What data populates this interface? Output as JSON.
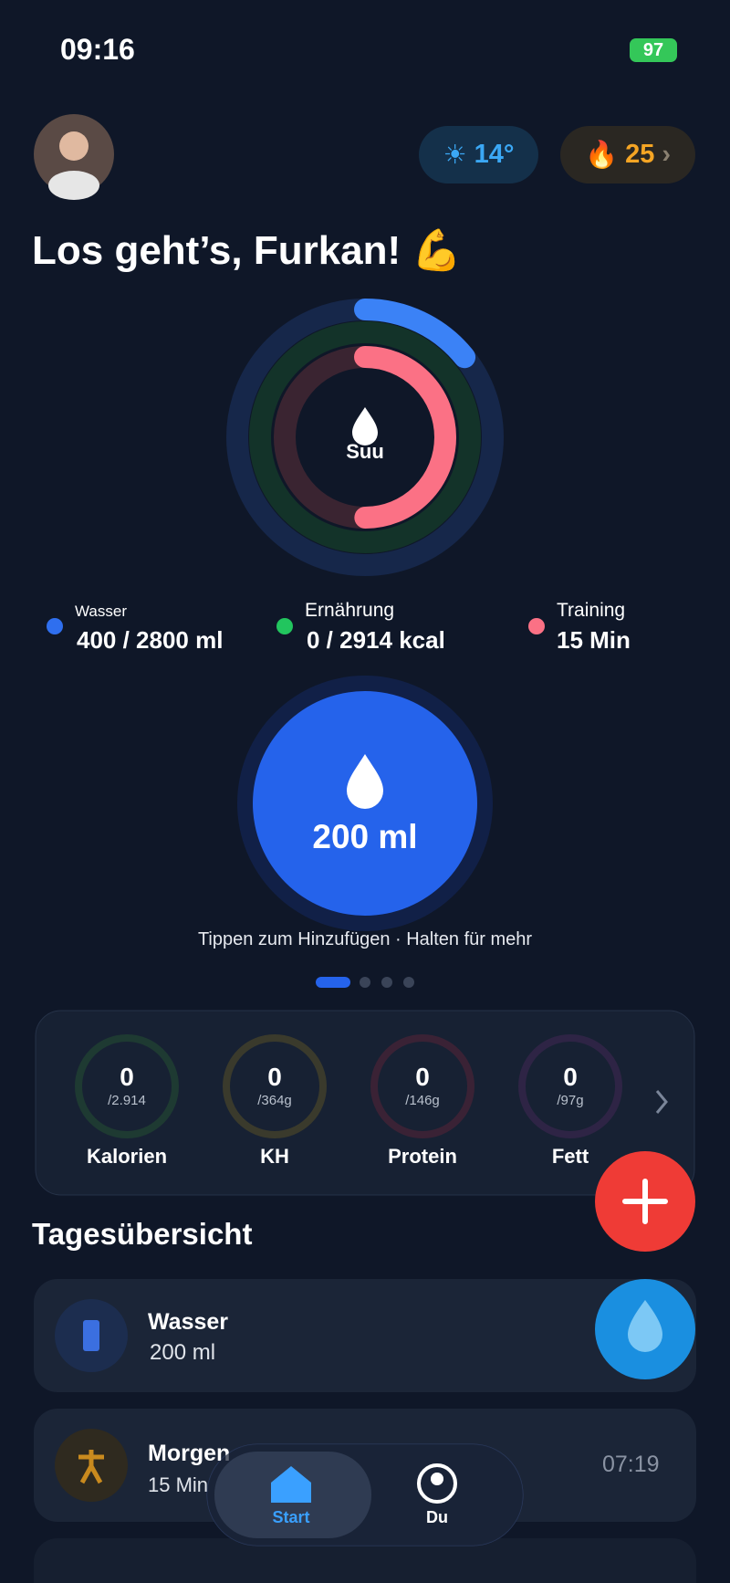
{
  "status_bar": {
    "time": "09:16",
    "battery": "97"
  },
  "header": {
    "weather": "14°",
    "streak": "25"
  },
  "greeting": "Los geht’s, Furkan! 💪",
  "rings": {
    "center_label": "Suu"
  },
  "legend": [
    {
      "label": "Wasser",
      "value": "400 / 2800 ml"
    },
    {
      "label": "Ernährung",
      "value": "0 / 2914 kcal"
    },
    {
      "label": "Training",
      "value": "15 Min"
    }
  ],
  "water_button": {
    "amount": "200 ml"
  },
  "hint": "Tippen zum Hinzufügen · Halten für mehr",
  "macros": [
    {
      "value": "0",
      "goal": "/2.914",
      "label": "Kalorien"
    },
    {
      "value": "0",
      "goal": "/364g",
      "label": "KH"
    },
    {
      "value": "0",
      "goal": "/146g",
      "label": "Protein"
    },
    {
      "value": "0",
      "goal": "/97g",
      "label": "Fett"
    }
  ],
  "overview": {
    "title": "Tagesübersicht",
    "items": [
      {
        "title": "Wasser",
        "detail": "200 ml"
      },
      {
        "title": "Morgen",
        "detail": "15 Min",
        "time": "07:19"
      }
    ]
  },
  "nav": [
    "Start",
    "Du"
  ]
}
